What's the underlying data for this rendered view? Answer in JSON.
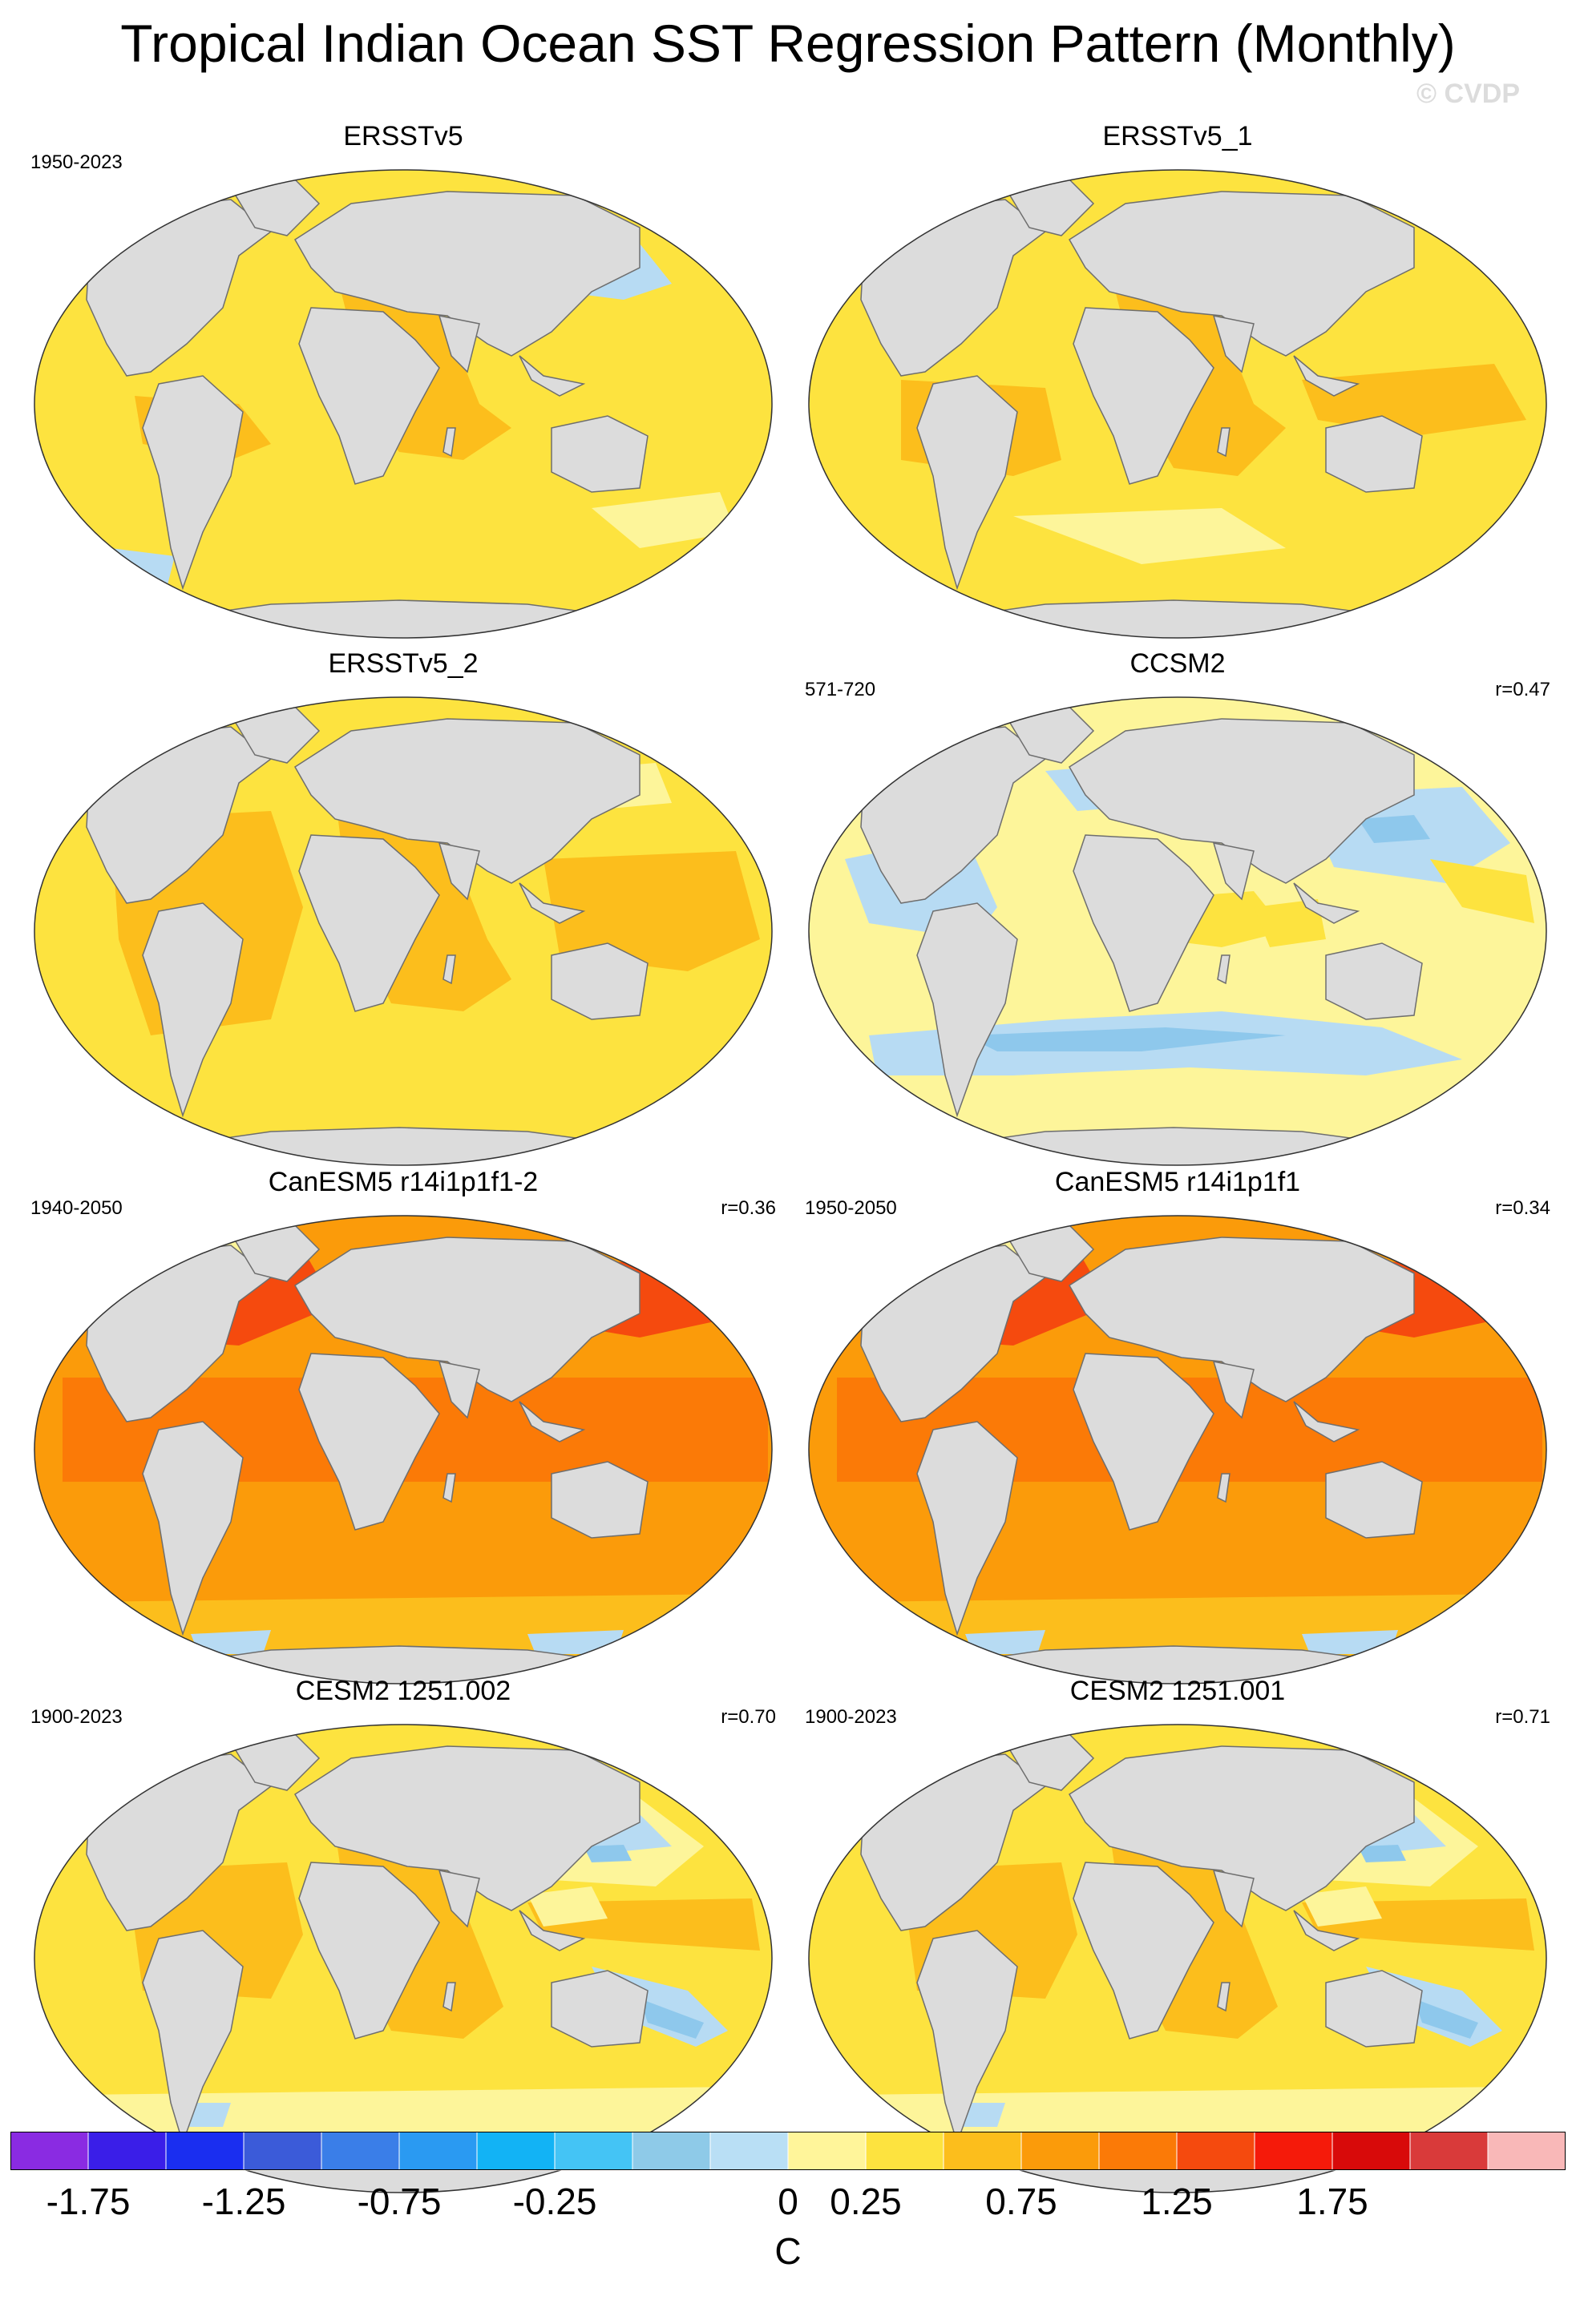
{
  "title": "Tropical Indian Ocean SST Regression Pattern (Monthly)",
  "watermark": "© CVDP",
  "colors": {
    "ocean_warm_light": "#fdf59a",
    "ocean_warm": "#fde33f",
    "ocean_warmer": "#fcbe1c",
    "ocean_orange": "#fb9b0a",
    "ocean_deep_orange": "#fb7a07",
    "ocean_red": "#f54a0e",
    "ocean_cold_light": "#b7dbf3",
    "ocean_cold": "#8ec8ec",
    "land": "#dcdcdc",
    "coast": "#6e6e6e"
  },
  "panels": [
    {
      "title": "ERSSTv5",
      "period": "1950-2023",
      "corr": "",
      "style": "obs_a"
    },
    {
      "title": "ERSSTv5_1",
      "period": "",
      "corr": "",
      "style": "obs_b"
    },
    {
      "title": "ERSSTv5_2",
      "period": "",
      "corr": "",
      "style": "obs_c"
    },
    {
      "title": "CCSM2",
      "period": "571-720",
      "corr": "r=0.47",
      "style": "ccsm2"
    },
    {
      "title": "CanESM5 r14i1p1f1-2",
      "period": "1940-2050",
      "corr": "r=0.36",
      "style": "canesm"
    },
    {
      "title": "CanESM5 r14i1p1f1",
      "period": "1950-2050",
      "corr": "r=0.34",
      "style": "canesm"
    },
    {
      "title": "CESM2 1251.002",
      "period": "1900-2023",
      "corr": "r=0.70",
      "style": "cesm"
    },
    {
      "title": "CESM2 1251.001",
      "period": "1900-2023",
      "corr": "r=0.71",
      "style": "cesm"
    }
  ],
  "colorbar": {
    "colors": [
      "#8a2be2",
      "#3a1ee8",
      "#1a2ef0",
      "#3b5bd9",
      "#3a7ee8",
      "#2a9af2",
      "#12b3f5",
      "#44c4f5",
      "#8ecae8",
      "#b9dff5",
      "#fff59a",
      "#fde33f",
      "#fcbe1c",
      "#fb9b0a",
      "#fb7a07",
      "#f54a0e",
      "#f51a0a",
      "#d80a0a",
      "#d93a3a",
      "#f9b8b8"
    ],
    "labels": [
      "-1.75",
      "-1.25",
      "-0.75",
      "-0.25",
      "0",
      "0.25",
      "0.75",
      "1.25",
      "1.75"
    ],
    "label_boundaries": [
      1,
      3,
      5,
      7,
      10,
      11,
      13,
      15,
      17
    ],
    "units": "C"
  }
}
